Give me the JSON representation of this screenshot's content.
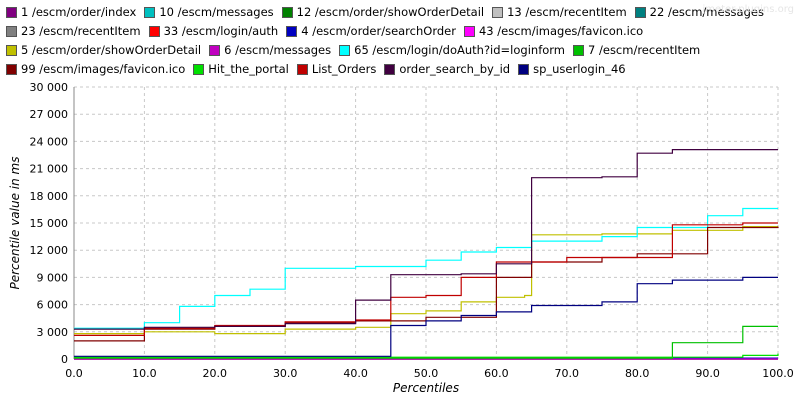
{
  "watermark": "jmeter-plugins.org",
  "chart_data": {
    "type": "line",
    "xlabel": "Percentiles",
    "ylabel": "Percentile value in ms",
    "xlim": [
      0,
      100
    ],
    "ylim": [
      0,
      30000
    ],
    "x_ticks": [
      "0.0",
      "10.0",
      "20.0",
      "30.0",
      "40.0",
      "50.0",
      "60.0",
      "70.0",
      "80.0",
      "90.0",
      "100.0"
    ],
    "y_ticks": [
      "0",
      "3 000",
      "6 000",
      "9 000",
      "12 000",
      "15 000",
      "18 000",
      "21 000",
      "24 000",
      "27 000",
      "30 000"
    ],
    "grid": true,
    "legend_position": "top",
    "series": [
      {
        "name": "1 /escm/order/index",
        "color": "#800080",
        "points": [
          [
            0,
            0
          ],
          [
            100,
            0
          ]
        ]
      },
      {
        "name": "10 /escm/messages",
        "color": "#00c0c0",
        "points": [
          [
            0,
            0
          ],
          [
            100,
            0
          ]
        ]
      },
      {
        "name": "12 /escm/order/showOrderDetail",
        "color": "#008000",
        "points": [
          [
            0,
            0
          ],
          [
            100,
            0
          ]
        ]
      },
      {
        "name": "13 /escm/recentItem",
        "color": "#c0c0c0",
        "points": [
          [
            0,
            0
          ],
          [
            100,
            0
          ]
        ]
      },
      {
        "name": "22 /escm/messages",
        "color": "#008080",
        "points": [
          [
            0,
            0
          ],
          [
            100,
            0
          ]
        ]
      },
      {
        "name": "23 /escm/recentItem",
        "color": "#808080",
        "points": [
          [
            0,
            0
          ],
          [
            100,
            0
          ]
        ]
      },
      {
        "name": "33 /escm/login/auth",
        "color": "#ff0000",
        "points": [
          [
            0,
            0
          ],
          [
            100,
            0
          ]
        ]
      },
      {
        "name": "4 /escm/order/searchOrder",
        "color": "#0000c0",
        "points": [
          [
            0,
            100
          ],
          [
            40,
            100
          ],
          [
            100,
            100
          ]
        ]
      },
      {
        "name": "43 /escm/images/favicon.ico",
        "color": "#ff00ff",
        "points": [
          [
            0,
            0
          ],
          [
            100,
            0
          ]
        ]
      },
      {
        "name": "5 /escm/order/showOrderDetail",
        "color": "#c0c000",
        "points": [
          [
            0,
            2800
          ],
          [
            10,
            3000
          ],
          [
            20,
            2800
          ],
          [
            30,
            3300
          ],
          [
            40,
            3500
          ],
          [
            45,
            5000
          ],
          [
            50,
            5300
          ],
          [
            55,
            6300
          ],
          [
            60,
            6800
          ],
          [
            64,
            7000
          ],
          [
            65,
            13700
          ],
          [
            75,
            13800
          ],
          [
            85,
            14200
          ],
          [
            95,
            14600
          ],
          [
            100,
            14600
          ]
        ]
      },
      {
        "name": "6 /escm/messages",
        "color": "#c000c0",
        "points": [
          [
            0,
            0
          ],
          [
            100,
            0
          ]
        ]
      },
      {
        "name": "65 /escm/login/doAuth?id=loginform",
        "color": "#00ffff",
        "points": [
          [
            0,
            3400
          ],
          [
            10,
            4000
          ],
          [
            15,
            5800
          ],
          [
            20,
            7000
          ],
          [
            25,
            7700
          ],
          [
            30,
            10000
          ],
          [
            40,
            10200
          ],
          [
            50,
            10900
          ],
          [
            55,
            11800
          ],
          [
            60,
            12300
          ],
          [
            65,
            13000
          ],
          [
            75,
            13500
          ],
          [
            80,
            14500
          ],
          [
            90,
            15800
          ],
          [
            95,
            16600
          ],
          [
            100,
            16600
          ]
        ]
      },
      {
        "name": "7 /escm/recentItem",
        "color": "#00c000",
        "points": [
          [
            0,
            100
          ],
          [
            80,
            100
          ],
          [
            85,
            1800
          ],
          [
            95,
            3600
          ],
          [
            100,
            3600
          ]
        ]
      },
      {
        "name": "99 /escm/images/favicon.ico",
        "color": "#800000",
        "points": [
          [
            0,
            2000
          ],
          [
            10,
            3300
          ],
          [
            20,
            3600
          ],
          [
            30,
            4000
          ],
          [
            40,
            4200
          ],
          [
            50,
            4600
          ],
          [
            60,
            9000
          ],
          [
            65,
            10700
          ],
          [
            75,
            11200
          ],
          [
            80,
            11600
          ],
          [
            90,
            14500
          ],
          [
            100,
            14600
          ]
        ]
      },
      {
        "name": "Hit_the_portal",
        "color": "#00e000",
        "points": [
          [
            0,
            200
          ],
          [
            80,
            200
          ],
          [
            95,
            400
          ],
          [
            100,
            600
          ]
        ]
      },
      {
        "name": "List_Orders",
        "color": "#c00000",
        "points": [
          [
            0,
            2600
          ],
          [
            10,
            3400
          ],
          [
            20,
            3700
          ],
          [
            30,
            4100
          ],
          [
            40,
            4300
          ],
          [
            45,
            6800
          ],
          [
            50,
            7000
          ],
          [
            55,
            9000
          ],
          [
            60,
            10700
          ],
          [
            70,
            11200
          ],
          [
            85,
            14800
          ],
          [
            95,
            15000
          ],
          [
            100,
            15000
          ]
        ]
      },
      {
        "name": "order_search_by_id",
        "color": "#400040",
        "points": [
          [
            0,
            3300
          ],
          [
            10,
            3500
          ],
          [
            20,
            3600
          ],
          [
            30,
            3900
          ],
          [
            40,
            6500
          ],
          [
            45,
            9300
          ],
          [
            55,
            9400
          ],
          [
            60,
            10500
          ],
          [
            65,
            20000
          ],
          [
            75,
            20100
          ],
          [
            80,
            22700
          ],
          [
            85,
            23100
          ],
          [
            100,
            23100
          ]
        ]
      },
      {
        "name": "sp_userlogin_46",
        "color": "#000080",
        "points": [
          [
            0,
            300
          ],
          [
            40,
            300
          ],
          [
            45,
            3700
          ],
          [
            50,
            4200
          ],
          [
            55,
            4800
          ],
          [
            60,
            5200
          ],
          [
            65,
            5900
          ],
          [
            75,
            6300
          ],
          [
            80,
            8300
          ],
          [
            85,
            8700
          ],
          [
            95,
            9000
          ],
          [
            100,
            9000
          ]
        ]
      }
    ]
  }
}
